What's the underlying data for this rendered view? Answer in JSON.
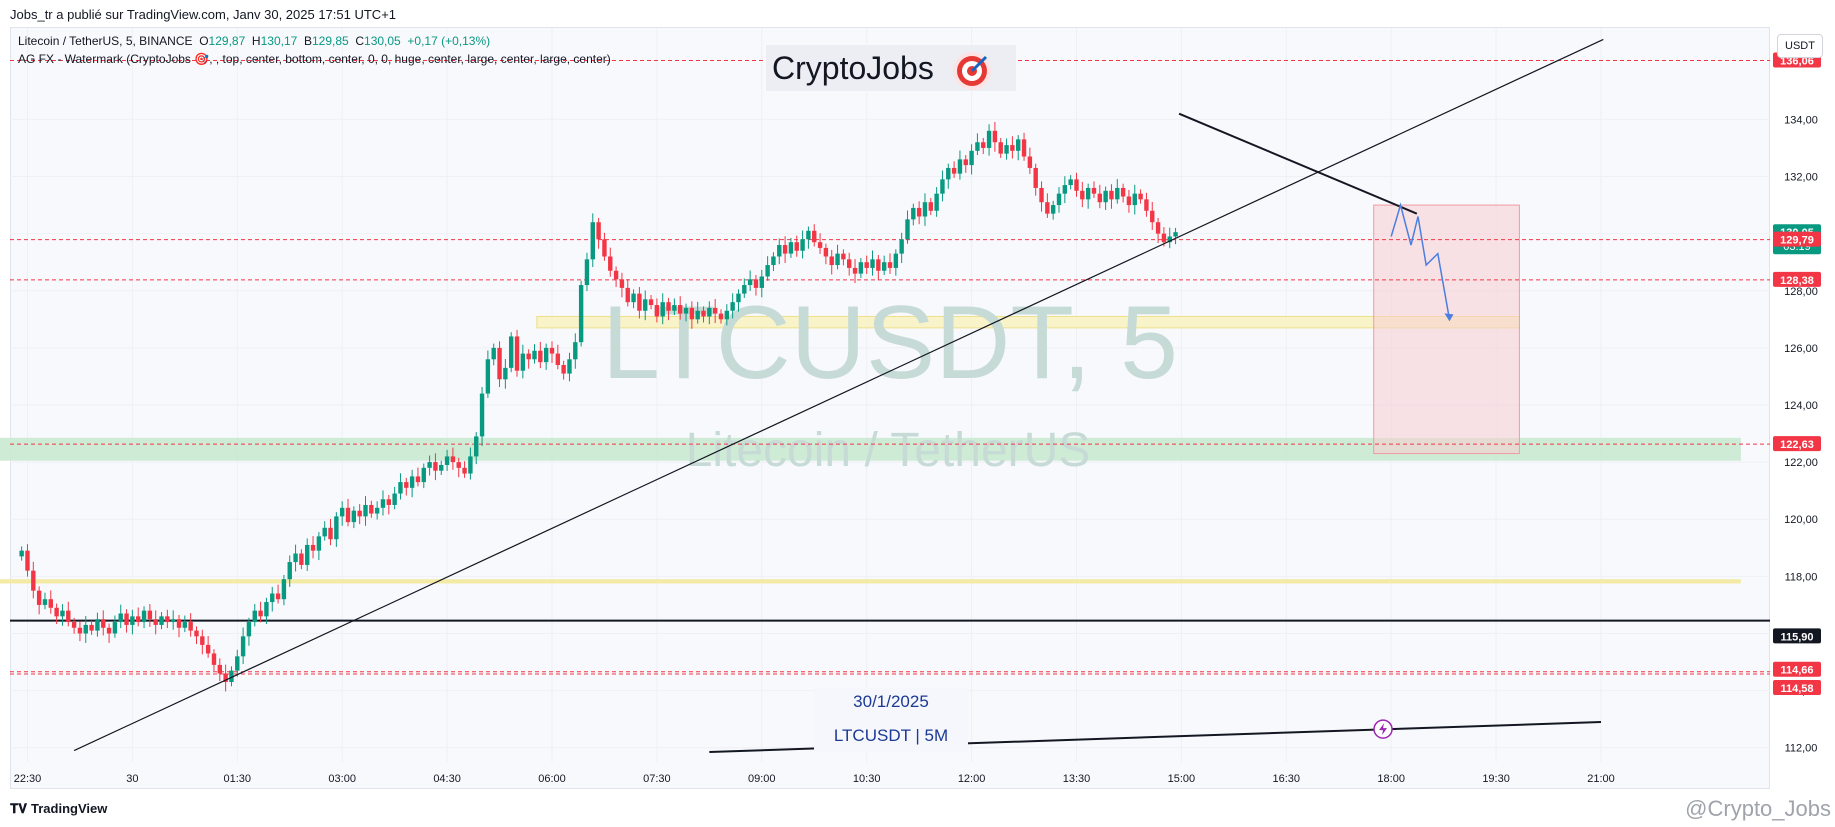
{
  "header": {
    "published": "Jobs_tr a publié sur TradingView.com, Janv 30, 2025 17:51 UTC+1",
    "legend_symbol": "Litecoin / TetherUS, 5, BINANCE",
    "legend_o_label": "O",
    "legend_o": "129,87",
    "legend_h_label": "H",
    "legend_h": "130,17",
    "legend_l_label": "B",
    "legend_l": "129,85",
    "legend_c_label": "C",
    "legend_c": "130,05",
    "legend_change": "+0,17 (+0,13%)",
    "indicator": "AG FX - Watermark (CryptoJobs 🎯, , top, center, bottom, center, 0, 0, huge, center, large, center, large, center)"
  },
  "watermark": {
    "brand": "CryptoJobs",
    "symbol": "LTCUSDT, 5",
    "name": "Litecoin / TetherUS"
  },
  "currency_button": "USDT",
  "info_box": {
    "date": "30/1/2025",
    "symbol_tf": "LTCUSDT | 5M"
  },
  "footer": {
    "logo": "TradingView",
    "credit": "@Crypto_Jobs"
  },
  "colors": {
    "up": "#089981",
    "down": "#f23645",
    "text": "#131722",
    "zone_red": "#f7c9cc",
    "zone_green": "#c9e9d2",
    "zone_yellow": "#f5f0b8"
  },
  "chart_data": {
    "type": "candlestick",
    "ylim": [
      111.5,
      137.2
    ],
    "y_ticks": [
      "112,00",
      "114,00",
      "116,00",
      "118,00",
      "120,00",
      "122,00",
      "124,00",
      "126,00",
      "128,00",
      "130,00",
      "132,00",
      "134,00"
    ],
    "y_tick_values": [
      112,
      114,
      116,
      118,
      120,
      122,
      124,
      126,
      128,
      130,
      132,
      134
    ],
    "x_ticks": [
      "22:30",
      "30",
      "01:30",
      "03:00",
      "04:30",
      "06:00",
      "07:30",
      "09:00",
      "10:30",
      "12:00",
      "13:30",
      "15:00",
      "16:30",
      "18:00",
      "19:30",
      "21:00"
    ],
    "x_tick_values": [
      -90,
      0,
      90,
      180,
      270,
      360,
      450,
      540,
      630,
      720,
      810,
      900,
      990,
      1080,
      1170,
      1260
    ],
    "x_unit": "minutes since 30 Jan 00:00",
    "price_labels": [
      {
        "text": "136,06",
        "value": 136.06,
        "color": "#f23645"
      },
      {
        "text": "130,05",
        "value": 130.05,
        "color": "#089981",
        "sub": "03:19"
      },
      {
        "text": "129,79",
        "value": 129.79,
        "color": "#f23645"
      },
      {
        "text": "128,38",
        "value": 128.38,
        "color": "#f23645"
      },
      {
        "text": "122,63",
        "value": 122.63,
        "color": "#f23645"
      },
      {
        "text": "115,90",
        "value": 115.9,
        "color": "#131722"
      },
      {
        "text": "114,66",
        "value": 114.66,
        "color": "#f23645"
      },
      {
        "text": "114,58",
        "value": 114.58,
        "color": "#f23645"
      }
    ],
    "horizontal_dashed": [
      136.06,
      129.79,
      128.38,
      122.63,
      114.66,
      114.58
    ],
    "horizontal_solid": [
      {
        "value": 116.45,
        "from": -120,
        "to": 1380
      }
    ],
    "zones": [
      {
        "kind": "green",
        "y1": 122.85,
        "y2": 122.05,
        "x1": -120,
        "x2": 1380
      },
      {
        "kind": "yellow",
        "y1": 127.1,
        "y2": 126.7,
        "x1": 347,
        "x2": 1190
      },
      {
        "kind": "yellow_thin",
        "y1": 117.9,
        "y2": 117.75,
        "x1": -120,
        "x2": 1380
      },
      {
        "kind": "red",
        "y1": 131.0,
        "y2": 122.3,
        "x1": 1065,
        "x2": 1190
      }
    ],
    "trendlines": [
      {
        "x1": -50,
        "y1": 111.9,
        "x2": 1262,
        "y2": 136.8,
        "width": 1.2
      },
      {
        "x1": 898,
        "y1": 134.2,
        "x2": 1102,
        "y2": 130.7,
        "width": 2
      },
      {
        "x1": 495,
        "y1": 111.85,
        "x2": 1260,
        "y2": 112.9,
        "width": 2
      }
    ],
    "projection": [
      [
        1080,
        129.9
      ],
      [
        1088,
        131.0
      ],
      [
        1097,
        129.6
      ],
      [
        1103,
        130.6
      ],
      [
        1110,
        128.9
      ],
      [
        1120,
        129.3
      ],
      [
        1130,
        127.0
      ]
    ],
    "candles_start_x": -95,
    "candles_step": 5,
    "closes": [
      118.9,
      118.2,
      117.5,
      117.0,
      117.2,
      116.9,
      116.6,
      116.8,
      116.4,
      116.2,
      116.0,
      116.3,
      116.1,
      116.5,
      116.2,
      116.0,
      116.4,
      116.7,
      116.3,
      116.6,
      116.4,
      116.8,
      116.5,
      116.3,
      116.6,
      116.4,
      116.5,
      116.2,
      116.4,
      116.1,
      115.9,
      115.6,
      115.3,
      114.9,
      114.6,
      114.3,
      114.7,
      115.2,
      115.9,
      116.4,
      116.8,
      116.6,
      117.1,
      117.4,
      117.2,
      117.9,
      118.5,
      118.8,
      118.4,
      119.1,
      118.9,
      119.4,
      119.7,
      119.3,
      120.1,
      120.4,
      119.9,
      120.3,
      120.1,
      120.5,
      120.2,
      120.4,
      120.7,
      120.5,
      120.9,
      121.3,
      121.1,
      121.5,
      121.3,
      121.8,
      122.0,
      121.7,
      121.9,
      122.2,
      122.0,
      121.8,
      121.6,
      122.2,
      122.9,
      124.4,
      125.6,
      126.0,
      124.9,
      125.3,
      126.4,
      125.2,
      125.8,
      125.6,
      125.9,
      125.5,
      126.0,
      125.8,
      125.4,
      125.1,
      125.6,
      126.2,
      128.2,
      129.1,
      130.4,
      129.8,
      129.2,
      128.7,
      128.4,
      128.1,
      127.6,
      127.9,
      127.3,
      127.7,
      127.5,
      127.1,
      127.6,
      127.3,
      127.5,
      127.2,
      127.4,
      127.0,
      127.3,
      127.1,
      127.4,
      127.2,
      127.0,
      127.3,
      127.6,
      127.9,
      128.2,
      128.4,
      128.1,
      128.5,
      128.9,
      129.2,
      129.6,
      129.3,
      129.7,
      129.4,
      129.8,
      130.1,
      129.7,
      129.5,
      129.2,
      128.9,
      129.3,
      129.1,
      128.8,
      128.6,
      129.0,
      128.8,
      129.1,
      128.7,
      129.0,
      128.8,
      129.3,
      129.8,
      130.5,
      130.9,
      130.6,
      131.1,
      130.8,
      131.4,
      131.9,
      132.3,
      132.1,
      132.6,
      132.4,
      132.9,
      133.2,
      133.0,
      133.6,
      133.2,
      132.8,
      133.1,
      132.9,
      133.3,
      132.7,
      132.3,
      131.6,
      131.1,
      130.7,
      131.0,
      131.4,
      131.7,
      131.9,
      131.5,
      131.2,
      131.6,
      131.4,
      131.1,
      131.5,
      131.2,
      131.6,
      131.3,
      131.0,
      131.4,
      131.2,
      130.8,
      130.4,
      130.0,
      129.7,
      129.9,
      130.05
    ]
  }
}
